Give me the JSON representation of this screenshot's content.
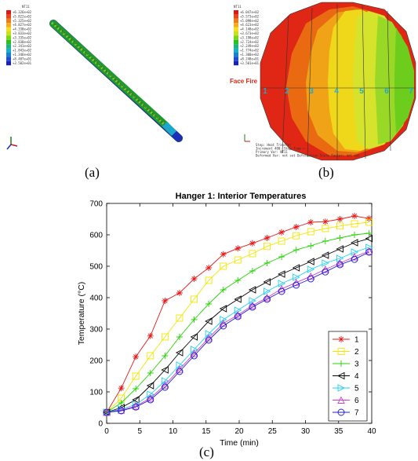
{
  "panels": {
    "a_label": "(a)",
    "b_label": "(b)",
    "c_label": "(c)"
  },
  "panel_a": {
    "legend_title": "NT11",
    "legend_values": [
      "+6.326e+02",
      "+5.822e+02",
      "+5.325e+02",
      "+4.827e+02",
      "+4.330e+02",
      "+3.833e+02",
      "+3.335e+02",
      "+2.838e+02",
      "+2.341e+02",
      "+1.843e+02",
      "+1.346e+02",
      "+8.487e+01",
      "+3.502e+01"
    ]
  },
  "panel_b": {
    "legend_title": "NT11",
    "legend_values": [
      "+6.047e+02",
      "+5.573e+02",
      "+5.098e+02",
      "+4.623e+02",
      "+4.148e+02",
      "+3.673e+02",
      "+3.198e+02",
      "+2.724e+02",
      "+2.249e+02",
      "+1.774e+02",
      "+1.300e+02",
      "+8.248e+01",
      "+3.501e+01"
    ],
    "face_fire_label": "Face Fire",
    "point_labels": [
      "1",
      "2",
      "3",
      "4",
      "5",
      "6",
      "7"
    ],
    "footer_lines": [
      "Step: Heat Transfer",
      "Increment    400: Step Time =",
      "Primary Var: NT11",
      "Deformed Var: not set   Deformation Scale Factor: not set"
    ]
  },
  "colors": {
    "s1": "#e8191a",
    "s2": "#f2e600",
    "s3": "#22d400",
    "s4": "#000000",
    "s5": "#1fd0f0",
    "s6": "#d23ed2",
    "s7": "#1f1fd0"
  },
  "chart_data": {
    "type": "line",
    "title": "Hanger 1: Interior Temperatures",
    "xlabel": "Time (min)",
    "ylabel": "Temperature (°C)",
    "xlim": [
      0,
      40
    ],
    "ylim": [
      0,
      700
    ],
    "xticks": [
      0,
      5,
      10,
      15,
      20,
      25,
      30,
      35,
      40
    ],
    "yticks": [
      0,
      100,
      200,
      300,
      400,
      500,
      600,
      700
    ],
    "legend_position": "bottom-right",
    "x": [
      0,
      2.2,
      4.4,
      6.6,
      8.8,
      11,
      13.2,
      15.4,
      17.6,
      19.8,
      22,
      24.2,
      26.4,
      28.6,
      30.8,
      33,
      35.2,
      37.4,
      39.6
    ],
    "series": [
      {
        "name": "1",
        "marker": "star",
        "values": [
          35,
          112,
          212,
          278,
          390,
          415,
          460,
          495,
          538,
          557,
          573,
          590,
          608,
          625,
          640,
          642,
          650,
          660,
          652
        ]
      },
      {
        "name": "2",
        "marker": "square",
        "values": [
          35,
          80,
          150,
          215,
          275,
          335,
          395,
          455,
          500,
          520,
          540,
          563,
          580,
          597,
          610,
          620,
          628,
          635,
          640
        ]
      },
      {
        "name": "3",
        "marker": "plus",
        "values": [
          35,
          65,
          110,
          160,
          215,
          275,
          330,
          380,
          425,
          455,
          485,
          510,
          530,
          552,
          565,
          580,
          590,
          600,
          605
        ]
      },
      {
        "name": "4",
        "marker": "triangle-left",
        "values": [
          35,
          50,
          75,
          120,
          170,
          225,
          275,
          325,
          365,
          395,
          425,
          450,
          475,
          495,
          515,
          535,
          555,
          575,
          588
        ]
      },
      {
        "name": "5",
        "marker": "triangle-right",
        "values": [
          35,
          45,
          60,
          92,
          135,
          185,
          235,
          285,
          330,
          360,
          390,
          420,
          445,
          465,
          490,
          510,
          525,
          545,
          560
        ]
      },
      {
        "name": "6",
        "marker": "triangle-up",
        "values": [
          35,
          42,
          55,
          80,
          122,
          172,
          222,
          272,
          318,
          345,
          375,
          400,
          428,
          448,
          468,
          490,
          510,
          530,
          548
        ]
      },
      {
        "name": "7",
        "marker": "circle",
        "values": [
          35,
          40,
          52,
          75,
          115,
          165,
          215,
          265,
          310,
          340,
          370,
          395,
          420,
          440,
          460,
          482,
          505,
          522,
          545
        ]
      }
    ]
  }
}
